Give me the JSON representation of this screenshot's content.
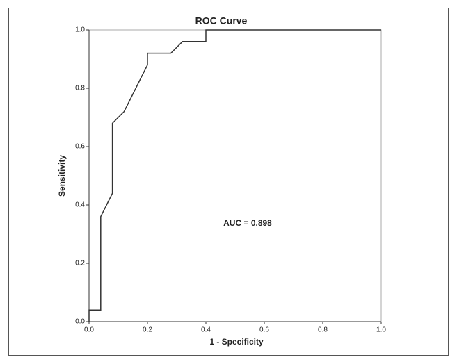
{
  "chart_data": {
    "type": "line",
    "title": "ROC Curve",
    "xlabel": "1 - Specificity",
    "ylabel": "Sensitivity",
    "annotation": "AUC = 0.898",
    "x": [
      0,
      0,
      0.04,
      0.04,
      0.08,
      0.08,
      0.12,
      0.2,
      0.2,
      0.28,
      0.32,
      0.4,
      0.4,
      1.0
    ],
    "series": [
      {
        "color": "#333333",
        "values": [
          0,
          0.04,
          0.04,
          0.36,
          0.44,
          0.68,
          0.72,
          0.88,
          0.92,
          0.92,
          0.96,
          0.96,
          1.0,
          1.0
        ]
      }
    ],
    "xlim": [
      0,
      1
    ],
    "ylim": [
      0,
      1
    ],
    "xticks": [
      {
        "value": 0,
        "label": "0.0"
      },
      0.2,
      0.4,
      0.6,
      0.8,
      {
        "value": 1,
        "label": "1.0"
      }
    ],
    "yticks": [
      {
        "value": 0,
        "label": "0.0"
      },
      0.2,
      0.4,
      0.6,
      0.8,
      {
        "value": 1,
        "label": "1.0"
      }
    ]
  }
}
